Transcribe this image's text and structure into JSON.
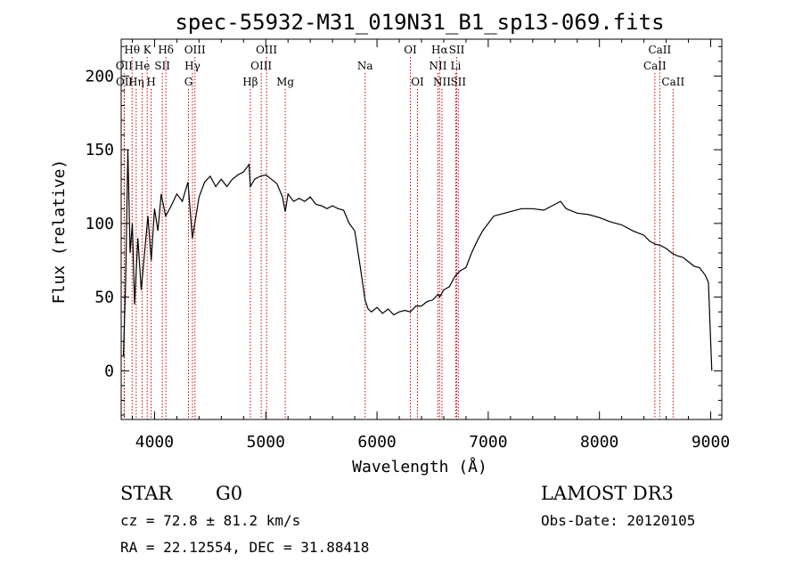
{
  "chart_data": {
    "type": "line",
    "title": "spec-55932-M31_019N31_B1_sp13-069.fits",
    "xlabel": "Wavelength (Å)",
    "ylabel": "Flux (relative)",
    "xlim": [
      3700,
      9100
    ],
    "ylim": [
      -33,
      225
    ],
    "xticks": [
      4000,
      5000,
      6000,
      7000,
      8000,
      9000
    ],
    "yticks": [
      0,
      50,
      100,
      150,
      200
    ],
    "series": [
      {
        "name": "spectrum",
        "x": [
          3720,
          3740,
          3760,
          3780,
          3800,
          3820,
          3850,
          3880,
          3910,
          3940,
          3970,
          4000,
          4030,
          4060,
          4100,
          4150,
          4200,
          4250,
          4300,
          4340,
          4400,
          4450,
          4500,
          4550,
          4600,
          4650,
          4700,
          4750,
          4800,
          4850,
          4861,
          4900,
          4950,
          5000,
          5050,
          5100,
          5150,
          5175,
          5200,
          5250,
          5300,
          5350,
          5400,
          5450,
          5500,
          5550,
          5600,
          5650,
          5700,
          5750,
          5800,
          5850,
          5893,
          5920,
          5950,
          6000,
          6050,
          6100,
          6150,
          6200,
          6250,
          6300,
          6350,
          6400,
          6450,
          6500,
          6550,
          6563,
          6600,
          6650,
          6700,
          6750,
          6800,
          6850,
          6900,
          6950,
          7000,
          7050,
          7100,
          7150,
          7200,
          7300,
          7400,
          7500,
          7600,
          7650,
          7700,
          7800,
          7900,
          8000,
          8100,
          8200,
          8300,
          8400,
          8450,
          8500,
          8550,
          8600,
          8650,
          8700,
          8750,
          8800,
          8850,
          8900,
          8950,
          8980,
          9000,
          9010
        ],
        "values": [
          10,
          60,
          150,
          80,
          100,
          45,
          90,
          55,
          80,
          105,
          75,
          110,
          95,
          120,
          105,
          112,
          120,
          115,
          128,
          90,
          118,
          128,
          132,
          125,
          130,
          125,
          130,
          133,
          135,
          140,
          125,
          130,
          132,
          133,
          130,
          127,
          118,
          108,
          120,
          115,
          117,
          115,
          118,
          113,
          112,
          110,
          112,
          110,
          109,
          100,
          95,
          70,
          48,
          42,
          40,
          43,
          39,
          42,
          38,
          40,
          41,
          40,
          44,
          44,
          47,
          48,
          52,
          50,
          55,
          57,
          64,
          68,
          70,
          80,
          88,
          95,
          100,
          105,
          106,
          107,
          108,
          110,
          110,
          109,
          113,
          115,
          110,
          107,
          106,
          104,
          101,
          99,
          95,
          92,
          88,
          86,
          85,
          83,
          80,
          78,
          77,
          74,
          71,
          70,
          65,
          60,
          20,
          0
        ]
      }
    ],
    "emission_lines": [
      {
        "label": "Hθ",
        "wl": 3798,
        "row": 0
      },
      {
        "label": "OII",
        "wl": 3727,
        "row": 1
      },
      {
        "label": "OII",
        "wl": 3729,
        "row": 2
      },
      {
        "label": "He",
        "wl": 3889,
        "row": 1
      },
      {
        "label": "Hη",
        "wl": 3835,
        "row": 2
      },
      {
        "label": "K",
        "wl": 3934,
        "row": 0
      },
      {
        "label": "SII",
        "wl": 4070,
        "row": 1
      },
      {
        "label": "H",
        "wl": 3969,
        "row": 2
      },
      {
        "label": "Hδ",
        "wl": 4102,
        "row": 0
      },
      {
        "label": "OIII",
        "wl": 4363,
        "row": 0
      },
      {
        "label": "Hγ",
        "wl": 4341,
        "row": 1
      },
      {
        "label": "G",
        "wl": 4305,
        "row": 2
      },
      {
        "label": "OIII",
        "wl": 5007,
        "row": 0
      },
      {
        "label": "OIII",
        "wl": 4959,
        "row": 1
      },
      {
        "label": "Hβ",
        "wl": 4861,
        "row": 2
      },
      {
        "label": "Mg",
        "wl": 5175,
        "row": 2
      },
      {
        "label": "Na",
        "wl": 5893,
        "row": 1
      },
      {
        "label": "OI",
        "wl": 6300,
        "row": 0
      },
      {
        "label": "OI",
        "wl": 6364,
        "row": 2
      },
      {
        "label": "Hα",
        "wl": 6563,
        "row": 0
      },
      {
        "label": "NII",
        "wl": 6548,
        "row": 1
      },
      {
        "label": "NII",
        "wl": 6584,
        "row": 2
      },
      {
        "label": "SII",
        "wl": 6717,
        "row": 0
      },
      {
        "label": "Li",
        "wl": 6708,
        "row": 1
      },
      {
        "label": "SII",
        "wl": 6731,
        "row": 2
      },
      {
        "label": "CaII",
        "wl": 8542,
        "row": 0
      },
      {
        "label": "CaII",
        "wl": 8498,
        "row": 1
      },
      {
        "label": "CaII",
        "wl": 8662,
        "row": 2
      }
    ]
  },
  "info": {
    "class": "STAR",
    "subclass": "G0",
    "survey": "LAMOST DR3",
    "cz": "cz = 72.8 ± 81.2 km/s",
    "obs_date": "Obs-Date: 20120105",
    "radec": "RA =  22.12554, DEC =  31.88418"
  },
  "colors": {
    "line": "#000000",
    "marker": "#cc0000",
    "axis": "#000000"
  }
}
